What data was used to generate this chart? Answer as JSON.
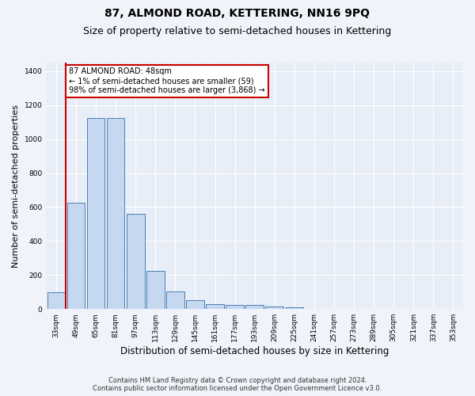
{
  "title": "87, ALMOND ROAD, KETTERING, NN16 9PQ",
  "subtitle": "Size of property relative to semi-detached houses in Kettering",
  "xlabel": "Distribution of semi-detached houses by size in Kettering",
  "ylabel": "Number of semi-detached properties",
  "footer_line1": "Contains HM Land Registry data © Crown copyright and database right 2024.",
  "footer_line2": "Contains public sector information licensed under the Open Government Licence v3.0.",
  "categories": [
    "33sqm",
    "49sqm",
    "65sqm",
    "81sqm",
    "97sqm",
    "113sqm",
    "129sqm",
    "145sqm",
    "161sqm",
    "177sqm",
    "193sqm",
    "209sqm",
    "225sqm",
    "241sqm",
    "257sqm",
    "273sqm",
    "289sqm",
    "305sqm",
    "321sqm",
    "337sqm",
    "353sqm"
  ],
  "values": [
    100,
    625,
    1125,
    1125,
    560,
    225,
    105,
    50,
    30,
    25,
    25,
    15,
    10,
    0,
    0,
    0,
    0,
    0,
    0,
    0,
    0
  ],
  "bar_color": "#c5d8f0",
  "bar_edge_color": "#4a7eb5",
  "ylim": [
    0,
    1450
  ],
  "yticks": [
    0,
    200,
    400,
    600,
    800,
    1000,
    1200,
    1400
  ],
  "property_line_index": 1,
  "annotation_text": "87 ALMOND ROAD: 48sqm\n← 1% of semi-detached houses are smaller (59)\n98% of semi-detached houses are larger (3,868) →",
  "annotation_box_color": "#ffffff",
  "annotation_box_edge": "#cc0000",
  "vline_color": "#cc0000",
  "background_color": "#e8eef7",
  "fig_background_color": "#f0f4fa",
  "grid_color": "#ffffff",
  "title_fontsize": 10,
  "subtitle_fontsize": 9,
  "ylabel_fontsize": 8,
  "xlabel_fontsize": 8.5,
  "tick_fontsize": 6.5,
  "footer_fontsize": 6,
  "annotation_fontsize": 7
}
